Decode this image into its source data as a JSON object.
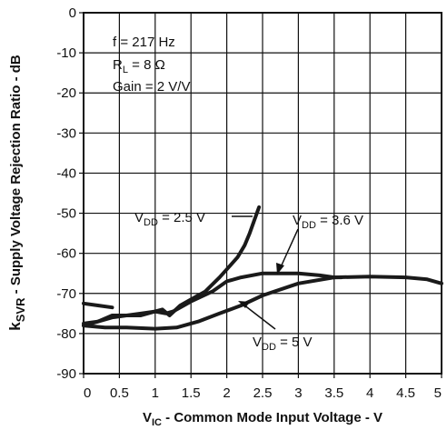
{
  "chart_data": {
    "type": "line",
    "xlabel_main": "V",
    "xlabel_sub": "IC",
    "xlabel_rest": " - Common Mode Input Voltage - V",
    "ylabel_main": "k",
    "ylabel_sub": "SVR",
    "ylabel_rest": " - Supply Voltage Rejection Ratio - dB",
    "xlim": [
      0,
      5
    ],
    "ylim": [
      -90,
      0
    ],
    "x_ticks": [
      "0",
      "0.5",
      "1",
      "1.5",
      "2",
      "2.5",
      "3",
      "3.5",
      "4",
      "4.5",
      "5"
    ],
    "y_ticks": [
      "0",
      "-10",
      "-20",
      "-30",
      "-40",
      "-50",
      "-60",
      "-70",
      "-80",
      "-90"
    ],
    "grid": true,
    "conditions": {
      "f": "f = 217 Hz",
      "rl_main": "R",
      "rl_sub": "L",
      "rl_rest": " = 8 Ω",
      "gain": "Gain = 2 V/V"
    },
    "series": [
      {
        "label_main": "V",
        "label_sub": "DD",
        "label_rest": " = 2.5 V",
        "x": [
          0,
          0.2,
          0.4,
          0.6,
          0.8,
          1.0,
          1.1,
          1.2,
          1.35,
          1.5,
          1.7,
          1.9,
          2.05,
          2.15,
          2.25,
          2.32,
          2.38,
          2.42,
          2.45
        ],
        "y": [
          -78,
          -77,
          -76,
          -75.5,
          -75.5,
          -74.5,
          -74,
          -75.5,
          -73,
          -71.5,
          -69.5,
          -66,
          -63,
          -61,
          -58,
          -55,
          -52,
          -50,
          -48.5
        ]
      },
      {
        "label_main": "V",
        "label_sub": "DD",
        "label_rest": " = 3.6 V",
        "x": [
          0,
          0.2,
          0.4,
          0.6,
          0.8,
          1.0,
          1.15,
          1.25,
          1.5,
          1.8,
          2.0,
          2.2,
          2.5,
          3.0,
          3.3,
          3.5,
          3.6
        ],
        "y": [
          -77.5,
          -77,
          -75.5,
          -75.5,
          -75,
          -74.5,
          -75,
          -74.5,
          -72,
          -69.5,
          -67,
          -66,
          -65,
          -65,
          -65.5,
          -66,
          -66
        ]
      },
      {
        "label_main": "V",
        "label_sub": "DD",
        "label_rest": " = 5 V",
        "x": [
          0,
          0.3,
          0.6,
          1.0,
          1.3,
          1.6,
          1.9,
          2.2,
          2.5,
          3.0,
          3.5,
          4.0,
          4.5,
          4.8,
          5.0
        ],
        "y": [
          -78,
          -78.5,
          -78.5,
          -78.8,
          -78.5,
          -77,
          -75,
          -73,
          -70.5,
          -67.5,
          -66,
          -65.8,
          -66,
          -66.5,
          -67.5
        ]
      }
    ],
    "extra_line": {
      "x": [
        0,
        0.2,
        0.4
      ],
      "y": [
        -72.5,
        -73,
        -73.5
      ]
    }
  }
}
